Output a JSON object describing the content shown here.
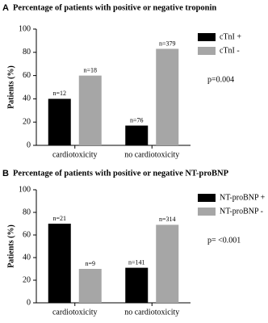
{
  "chart_data": [
    {
      "type": "bar",
      "label": "A",
      "title": "Percentage of patients with positive or negative troponin",
      "y_label": "Patients (%)",
      "categories": [
        "cardiotoxicity",
        "no cardiotoxicity"
      ],
      "series": [
        {
          "name": "cTnI +",
          "color": "#000000",
          "values": [
            40,
            17
          ],
          "n_labels": [
            "n=12",
            "n=76"
          ]
        },
        {
          "name": "cTnI -",
          "color": "#a6a6a6",
          "values": [
            60,
            83
          ],
          "n_labels": [
            "n=18",
            "n=379"
          ]
        }
      ],
      "ylim": [
        0,
        100
      ],
      "yticks": [
        0,
        20,
        40,
        60,
        80,
        100
      ],
      "annotation": "p=0.004"
    },
    {
      "type": "bar",
      "label": "B",
      "title": "Percentage of patients with positive or negative NT-proBNP",
      "y_label": "Patients (%)",
      "categories": [
        "cardiotoxicity",
        "no cardiotoxicity"
      ],
      "series": [
        {
          "name": "NT-proBNP +",
          "color": "#000000",
          "values": [
            70,
            31
          ],
          "n_labels": [
            "n=21",
            "n=141"
          ]
        },
        {
          "name": "NT-proBNP -",
          "color": "#a6a6a6",
          "values": [
            30,
            69
          ],
          "n_labels": [
            "n=9",
            "n=314"
          ]
        }
      ],
      "ylim": [
        0,
        100
      ],
      "yticks": [
        0,
        20,
        40,
        60,
        80,
        100
      ],
      "annotation": "p= <0.001"
    }
  ]
}
